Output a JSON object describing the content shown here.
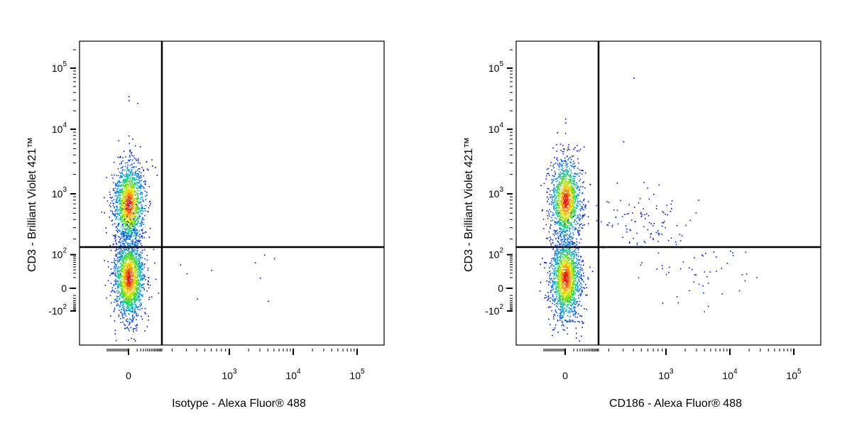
{
  "chart_data": [
    {
      "type": "scatter",
      "subtype": "flow-cytometry-density-dot-plot",
      "xlabel": "Isotype - Alexa Fluor® 488",
      "ylabel": "CD3 - Brilliant Violet 421™",
      "x_scale": "biexponential",
      "y_scale": "biexponential",
      "x_tick_labels": [
        {
          "base": "0",
          "exp": ""
        },
        {
          "base": "10",
          "exp": "3"
        },
        {
          "base": "10",
          "exp": "4"
        },
        {
          "base": "10",
          "exp": "5"
        }
      ],
      "y_tick_labels": [
        {
          "base": "10",
          "exp": "5"
        },
        {
          "base": "10",
          "exp": "4"
        },
        {
          "base": "10",
          "exp": "3"
        },
        {
          "base": "10",
          "exp": "2"
        },
        {
          "base": "0",
          "exp": ""
        },
        {
          "base": "-10",
          "exp": "2"
        }
      ],
      "quadrant_gate": {
        "x": 150,
        "y": 150
      },
      "populations": [
        {
          "name": "",
          "x_center": 0,
          "y_center": 700,
          "count": 1400
        },
        {
          "name": "",
          "x_center": 0,
          "y_center": 10,
          "count": 1600
        }
      ],
      "sparse_events": [
        {
          "x": 0,
          "y": 35000
        },
        {
          "x": 0,
          "y": 30000
        },
        {
          "x": 10,
          "y": 27000
        },
        {
          "x": 0,
          "y": 8000
        },
        {
          "x": 250,
          "y": 50
        },
        {
          "x": 300,
          "y": 20
        },
        {
          "x": 400,
          "y": -20
        },
        {
          "x": 600,
          "y": 30
        },
        {
          "x": 2500,
          "y": 60
        },
        {
          "x": 3000,
          "y": 10
        },
        {
          "x": 4000,
          "y": -30
        },
        {
          "x": 5000,
          "y": 80
        },
        {
          "x": 3500,
          "y": 100
        }
      ],
      "grid": false,
      "legend": "none"
    },
    {
      "type": "scatter",
      "subtype": "flow-cytometry-density-dot-plot",
      "xlabel": "CD186 - Alexa Fluor® 488",
      "ylabel": "CD3 - Brilliant Violet 421™",
      "x_scale": "biexponential",
      "y_scale": "biexponential",
      "x_tick_labels": [
        {
          "base": "0",
          "exp": ""
        },
        {
          "base": "10",
          "exp": "3"
        },
        {
          "base": "10",
          "exp": "4"
        },
        {
          "base": "10",
          "exp": "5"
        }
      ],
      "y_tick_labels": [
        {
          "base": "10",
          "exp": "5"
        },
        {
          "base": "10",
          "exp": "4"
        },
        {
          "base": "10",
          "exp": "3"
        },
        {
          "base": "10",
          "exp": "2"
        },
        {
          "base": "0",
          "exp": ""
        },
        {
          "base": "-10",
          "exp": "2"
        }
      ],
      "quadrant_gate": {
        "x": 150,
        "y": 150
      },
      "populations": [
        {
          "name": "",
          "x_center": 0,
          "y_center": 800,
          "count": 1300
        },
        {
          "name": "",
          "x_center": 0,
          "y_center": 10,
          "count": 1500
        },
        {
          "name": "",
          "x_center": 500,
          "y_center": 400,
          "count": 110
        },
        {
          "name": "",
          "x_center": 4000,
          "y_center": 20,
          "count": 45
        }
      ],
      "sparse_events": [
        {
          "x": 400,
          "y": 70000
        },
        {
          "x": 300,
          "y": 6500
        },
        {
          "x": 0,
          "y": 15000
        },
        {
          "x": 0,
          "y": 13000
        },
        {
          "x": 250,
          "y": 1500
        },
        {
          "x": 700,
          "y": 1000
        },
        {
          "x": 1200,
          "y": 600
        },
        {
          "x": 500,
          "y": 60
        },
        {
          "x": 900,
          "y": -40
        },
        {
          "x": 5500,
          "y": 120
        },
        {
          "x": 6000,
          "y": 90
        },
        {
          "x": 4500,
          "y": -60
        }
      ],
      "grid": false,
      "legend": "none"
    }
  ]
}
